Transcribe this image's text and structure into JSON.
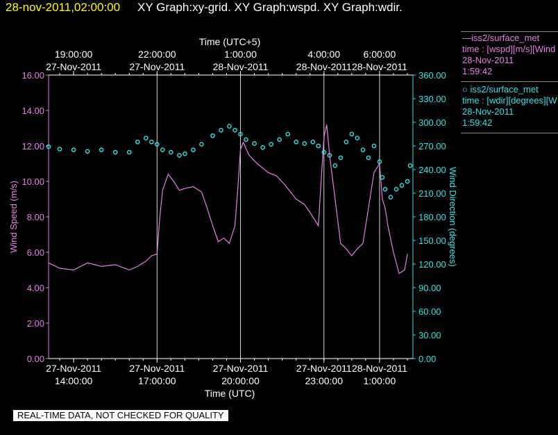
{
  "header": {
    "timestamp": "28-nov-2011,02:00:00",
    "title": "XY Graph:xy-grid.  XY Graph:wspd.  XY Graph:wdir."
  },
  "legend": [
    {
      "line1": "—iss2/surface_met",
      "line2": "time : [wspd][m/s][Wind",
      "line3": "28-Nov-2011",
      "line4": "1:59:42",
      "color": "#e97fe9"
    },
    {
      "line1": "○ iss2/surface_met",
      "line2": "time : [wdir][degrees][W",
      "line3": "28-Nov-2011",
      "line4": "1:59:42",
      "color": "#2ee6e6"
    }
  ],
  "disclaimer": "REAL-TIME DATA, NOT CHECKED FOR QUALITY",
  "chart_data": {
    "type": "line",
    "xlabel_bottom": "Time (UTC)",
    "xlabel_top": "Time (UTC+5)",
    "ylabel_left": "Wind Speed (m/s)",
    "ylabel_right": "Wind Direction (degrees)",
    "x_range_hours": [
      13.1,
      26.2
    ],
    "x_bottom_ticks": [
      {
        "hour": 14,
        "line1": "27-Nov-2011",
        "line2": "14:00:00"
      },
      {
        "hour": 17,
        "line1": "27-Nov-2011",
        "line2": "17:00:00"
      },
      {
        "hour": 20,
        "line1": "27-Nov-2011",
        "line2": "20:00:00"
      },
      {
        "hour": 23,
        "line1": "27-Nov-2011",
        "line2": "23:00:00"
      },
      {
        "hour": 25,
        "line1": "28-Nov-2011",
        "line2": "1:00:00"
      }
    ],
    "x_top_ticks": [
      {
        "hour": 14,
        "line1": "19:00:00",
        "line2": "27-Nov-2011"
      },
      {
        "hour": 17,
        "line1": "22:00:00",
        "line2": "27-Nov-2011"
      },
      {
        "hour": 20,
        "line1": "1:00:00",
        "line2": "28-Nov-2011"
      },
      {
        "hour": 23,
        "line1": "4:00:00",
        "line2": "28-Nov-2011"
      },
      {
        "hour": 25,
        "line1": "6:00:00",
        "line2": "28-Nov-2011"
      }
    ],
    "grid_hours": [
      17,
      20,
      23,
      25
    ],
    "y_left": {
      "min": 0,
      "max": 16,
      "ticks": [
        "0.00",
        "2.00",
        "4.00",
        "6.00",
        "8.00",
        "10.00",
        "12.00",
        "14.00",
        "16.00"
      ],
      "color": "#e97fe9"
    },
    "y_right": {
      "min": 0,
      "max": 360,
      "ticks": [
        "0.00",
        "30.00",
        "60.00",
        "90.00",
        "120.00",
        "150.00",
        "180.00",
        "210.00",
        "240.00",
        "270.00",
        "300.00",
        "330.00",
        "360.00"
      ],
      "color": "#2ee6e6"
    },
    "series": [
      {
        "name": "iss2/surface_met time : [wspd][m/s]",
        "axis": "left",
        "color": "#e97fe9",
        "x": [
          13.1,
          13.5,
          14.0,
          14.5,
          15.0,
          15.5,
          16.0,
          16.3,
          16.6,
          16.8,
          17.0,
          17.1,
          17.2,
          17.4,
          17.6,
          17.8,
          18.0,
          18.3,
          18.6,
          18.8,
          19.0,
          19.2,
          19.4,
          19.6,
          19.8,
          19.9,
          20.0,
          20.1,
          20.3,
          20.6,
          21.0,
          21.3,
          21.6,
          22.0,
          22.3,
          22.6,
          22.8,
          22.9,
          23.0,
          23.1,
          23.2,
          23.4,
          23.6,
          23.8,
          24.0,
          24.2,
          24.4,
          24.6,
          24.8,
          25.0,
          25.1,
          25.2,
          25.3,
          25.5,
          25.7,
          25.9,
          26.0
        ],
        "y": [
          5.4,
          5.1,
          5.0,
          5.4,
          5.2,
          5.3,
          5.0,
          5.2,
          5.5,
          5.8,
          5.9,
          8.0,
          9.5,
          10.4,
          10.0,
          9.5,
          9.6,
          9.7,
          9.4,
          8.5,
          7.5,
          6.6,
          6.8,
          6.5,
          7.5,
          9.5,
          11.8,
          12.2,
          11.5,
          11.0,
          10.5,
          10.3,
          9.8,
          9.0,
          8.7,
          8.0,
          7.5,
          10.0,
          12.5,
          13.2,
          11.5,
          9.0,
          6.5,
          6.2,
          5.8,
          6.2,
          6.5,
          8.5,
          10.5,
          11.0,
          9.0,
          8.5,
          7.5,
          6.0,
          4.8,
          5.0,
          5.9
        ]
      },
      {
        "name": "iss2/surface_met time : [wdir][degrees]",
        "axis": "right",
        "color": "#2ee6e6",
        "x": [
          13.1,
          13.5,
          14.0,
          14.5,
          15.0,
          15.5,
          16.0,
          16.3,
          16.6,
          16.8,
          17.0,
          17.2,
          17.5,
          17.8,
          18.0,
          18.3,
          18.6,
          19.0,
          19.3,
          19.6,
          19.8,
          20.0,
          20.2,
          20.5,
          20.8,
          21.1,
          21.4,
          21.7,
          22.0,
          22.3,
          22.6,
          22.8,
          23.0,
          23.2,
          23.4,
          23.6,
          23.8,
          24.0,
          24.2,
          24.4,
          24.6,
          24.8,
          25.0,
          25.1,
          25.2,
          25.4,
          25.6,
          25.8,
          26.0,
          26.1
        ],
        "y": [
          269,
          266,
          265,
          263,
          265,
          262,
          262,
          275,
          280,
          275,
          272,
          265,
          262,
          258,
          260,
          265,
          272,
          283,
          290,
          295,
          290,
          285,
          278,
          273,
          268,
          272,
          278,
          285,
          275,
          273,
          275,
          270,
          262,
          258,
          245,
          255,
          275,
          285,
          280,
          265,
          255,
          270,
          250,
          230,
          215,
          205,
          215,
          220,
          225,
          245
        ]
      }
    ]
  }
}
